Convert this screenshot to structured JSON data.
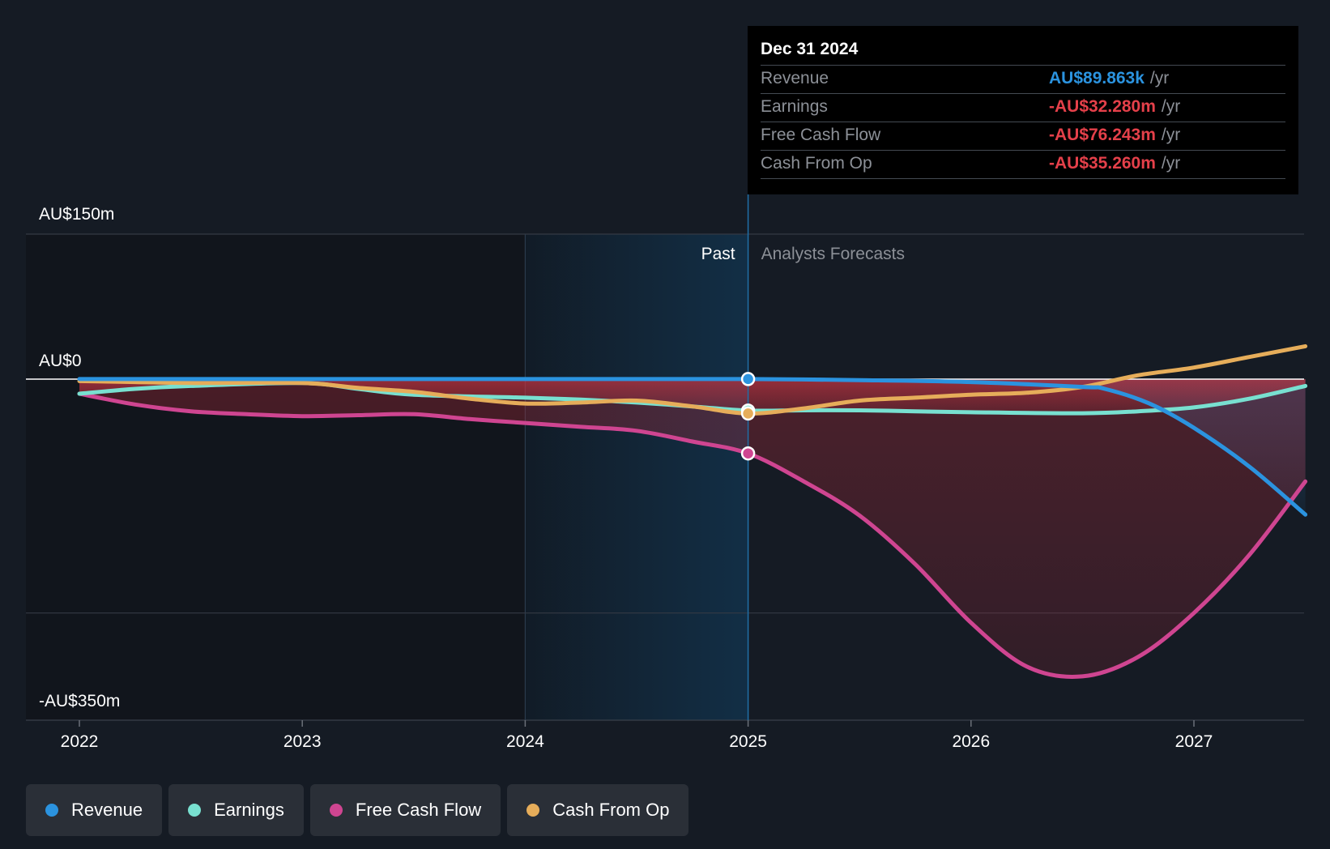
{
  "chart_data": {
    "type": "line",
    "title": "",
    "xlabel": "",
    "ylabel": "",
    "x_ticks": [
      "2022",
      "2023",
      "2024",
      "2025",
      "2026",
      "2027"
    ],
    "xlim": [
      2021.76,
      2027.5
    ],
    "y_ticks": [
      "AU$150m",
      "AU$0",
      "-AU$350m"
    ],
    "ylim": [
      -350,
      150
    ],
    "past_label": "Past",
    "forecast_label": "Analysts Forecasts",
    "divider_x": 2025.0,
    "highlight_start_x": 2024.0,
    "series": [
      {
        "name": "Revenue",
        "color": "#2b93df",
        "points": [
          [
            2022.0,
            0.1
          ],
          [
            2022.5,
            0.1
          ],
          [
            2023.0,
            0.1
          ],
          [
            2023.5,
            0.1
          ],
          [
            2024.0,
            0.1
          ],
          [
            2024.5,
            0.1
          ],
          [
            2025.0,
            0.09
          ],
          [
            2025.5,
            -1
          ],
          [
            2026.0,
            -3
          ],
          [
            2026.5,
            -8
          ],
          [
            2026.6,
            -10
          ],
          [
            2026.8,
            -25
          ],
          [
            2027.0,
            -50
          ],
          [
            2027.25,
            -90
          ],
          [
            2027.5,
            -139
          ]
        ]
      },
      {
        "name": "Earnings",
        "color": "#78e0d0",
        "points": [
          [
            2022.0,
            -15
          ],
          [
            2022.25,
            -10
          ],
          [
            2022.5,
            -7
          ],
          [
            2023.0,
            -4
          ],
          [
            2023.25,
            -10
          ],
          [
            2023.5,
            -16
          ],
          [
            2024.0,
            -19
          ],
          [
            2024.25,
            -21
          ],
          [
            2024.5,
            -24
          ],
          [
            2024.75,
            -28
          ],
          [
            2025.0,
            -32.28
          ],
          [
            2025.25,
            -32
          ],
          [
            2025.5,
            -32
          ],
          [
            2025.75,
            -33
          ],
          [
            2026.0,
            -34
          ],
          [
            2026.5,
            -35
          ],
          [
            2026.75,
            -33
          ],
          [
            2027.0,
            -29
          ],
          [
            2027.25,
            -20
          ],
          [
            2027.5,
            -7
          ]
        ]
      },
      {
        "name": "Free Cash Flow",
        "color": "#cf4591",
        "points": [
          [
            2022.0,
            -15
          ],
          [
            2022.25,
            -26
          ],
          [
            2022.5,
            -33
          ],
          [
            2022.75,
            -36
          ],
          [
            2023.0,
            -38
          ],
          [
            2023.25,
            -37
          ],
          [
            2023.5,
            -36
          ],
          [
            2023.75,
            -41
          ],
          [
            2024.0,
            -45
          ],
          [
            2024.25,
            -49
          ],
          [
            2024.5,
            -53
          ],
          [
            2024.75,
            -64
          ],
          [
            2025.0,
            -76.243
          ],
          [
            2025.25,
            -105
          ],
          [
            2025.5,
            -140
          ],
          [
            2025.75,
            -190
          ],
          [
            2026.0,
            -250
          ],
          [
            2026.25,
            -295
          ],
          [
            2026.5,
            -305
          ],
          [
            2026.75,
            -285
          ],
          [
            2027.0,
            -240
          ],
          [
            2027.25,
            -180
          ],
          [
            2027.5,
            -105
          ]
        ]
      },
      {
        "name": "Cash From Op",
        "color": "#e6ad5a",
        "points": [
          [
            2022.0,
            -2
          ],
          [
            2022.25,
            -3
          ],
          [
            2022.5,
            -4
          ],
          [
            2023.0,
            -4
          ],
          [
            2023.25,
            -9
          ],
          [
            2023.5,
            -13
          ],
          [
            2023.75,
            -20
          ],
          [
            2024.0,
            -25
          ],
          [
            2024.25,
            -24
          ],
          [
            2024.5,
            -22
          ],
          [
            2024.75,
            -28
          ],
          [
            2025.0,
            -35.26
          ],
          [
            2025.25,
            -30
          ],
          [
            2025.5,
            -22
          ],
          [
            2025.75,
            -19
          ],
          [
            2026.0,
            -16
          ],
          [
            2026.25,
            -14
          ],
          [
            2026.5,
            -8
          ],
          [
            2026.75,
            4
          ],
          [
            2027.0,
            12
          ],
          [
            2027.25,
            23
          ],
          [
            2027.5,
            34
          ]
        ]
      }
    ],
    "highlight_markers": [
      {
        "series": "Revenue",
        "x": 2025.0,
        "y": 0.09
      },
      {
        "series": "Earnings",
        "x": 2025.0,
        "y": -32.28
      },
      {
        "series": "Free Cash Flow",
        "x": 2025.0,
        "y": -76.243
      },
      {
        "series": "Cash From Op",
        "x": 2025.0,
        "y": -35.26
      }
    ],
    "tooltip": {
      "date": "Dec 31 2024",
      "rows": [
        {
          "label": "Revenue",
          "value": "AU$89.863k",
          "unit": "/yr",
          "color": "#2b93df"
        },
        {
          "label": "Earnings",
          "value": "-AU$32.280m",
          "unit": "/yr",
          "color": "#e5404a"
        },
        {
          "label": "Free Cash Flow",
          "value": "-AU$76.243m",
          "unit": "/yr",
          "color": "#e5404a"
        },
        {
          "label": "Cash From Op",
          "value": "-AU$35.260m",
          "unit": "/yr",
          "color": "#e5404a"
        }
      ]
    },
    "legend": [
      {
        "label": "Revenue",
        "color": "#2b93df"
      },
      {
        "label": "Earnings",
        "color": "#78e0d0"
      },
      {
        "label": "Free Cash Flow",
        "color": "#cf4591"
      },
      {
        "label": "Cash From Op",
        "color": "#e6ad5a"
      }
    ]
  }
}
